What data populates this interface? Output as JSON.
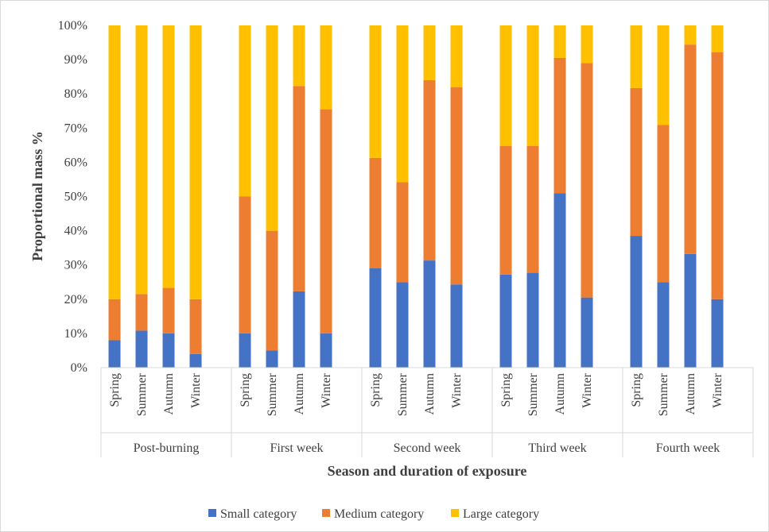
{
  "chart_data": {
    "type": "bar",
    "stacked": true,
    "percent_stacked": true,
    "xlabel": "Season and duration of exposure",
    "ylabel": "Proportional mass %",
    "ylim": [
      0,
      100
    ],
    "y_ticks": [
      0,
      10,
      20,
      30,
      40,
      50,
      60,
      70,
      80,
      90,
      100
    ],
    "y_tick_suffix": "%",
    "grid": false,
    "legend_position": "bottom",
    "groups": [
      {
        "label": "Post-burning",
        "categories": [
          "Spring",
          "Summer",
          "Autumn",
          "Winter"
        ]
      },
      {
        "label": "First week",
        "categories": [
          "Spring",
          "Summer",
          "Autumn",
          "Winter"
        ]
      },
      {
        "label": "Second week",
        "categories": [
          "Spring",
          "Summer",
          "Autumn",
          "Winter"
        ]
      },
      {
        "label": "Third week",
        "categories": [
          "Spring",
          "Summer",
          "Autumn",
          "Winter"
        ]
      },
      {
        "label": "Fourth week",
        "categories": [
          "Spring",
          "Summer",
          "Autumn",
          "Winter"
        ]
      }
    ],
    "series": [
      {
        "name": "Small category",
        "color": "#4472C4",
        "values": [
          8,
          10.8,
          10,
          4,
          10,
          5,
          22.3,
          10,
          29,
          25,
          31.3,
          24.3,
          27.2,
          27.7,
          51,
          20.5,
          38.5,
          25,
          33.2,
          20
        ]
      },
      {
        "name": "Medium category",
        "color": "#ED7D31",
        "values": [
          12,
          10.7,
          13.3,
          16,
          40,
          35,
          60,
          65.5,
          32.3,
          29.2,
          52.7,
          57.6,
          37.6,
          37.1,
          39.5,
          68.5,
          43.2,
          45.9,
          61.2,
          72.2
        ]
      },
      {
        "name": "Large category",
        "color": "#FFC000",
        "values": [
          80,
          78.5,
          76.7,
          80,
          50,
          60,
          17.7,
          24.5,
          38.7,
          45.8,
          16,
          18.1,
          35.2,
          35.2,
          9.5,
          11,
          18.3,
          29.1,
          5.6,
          7.8
        ]
      }
    ]
  }
}
